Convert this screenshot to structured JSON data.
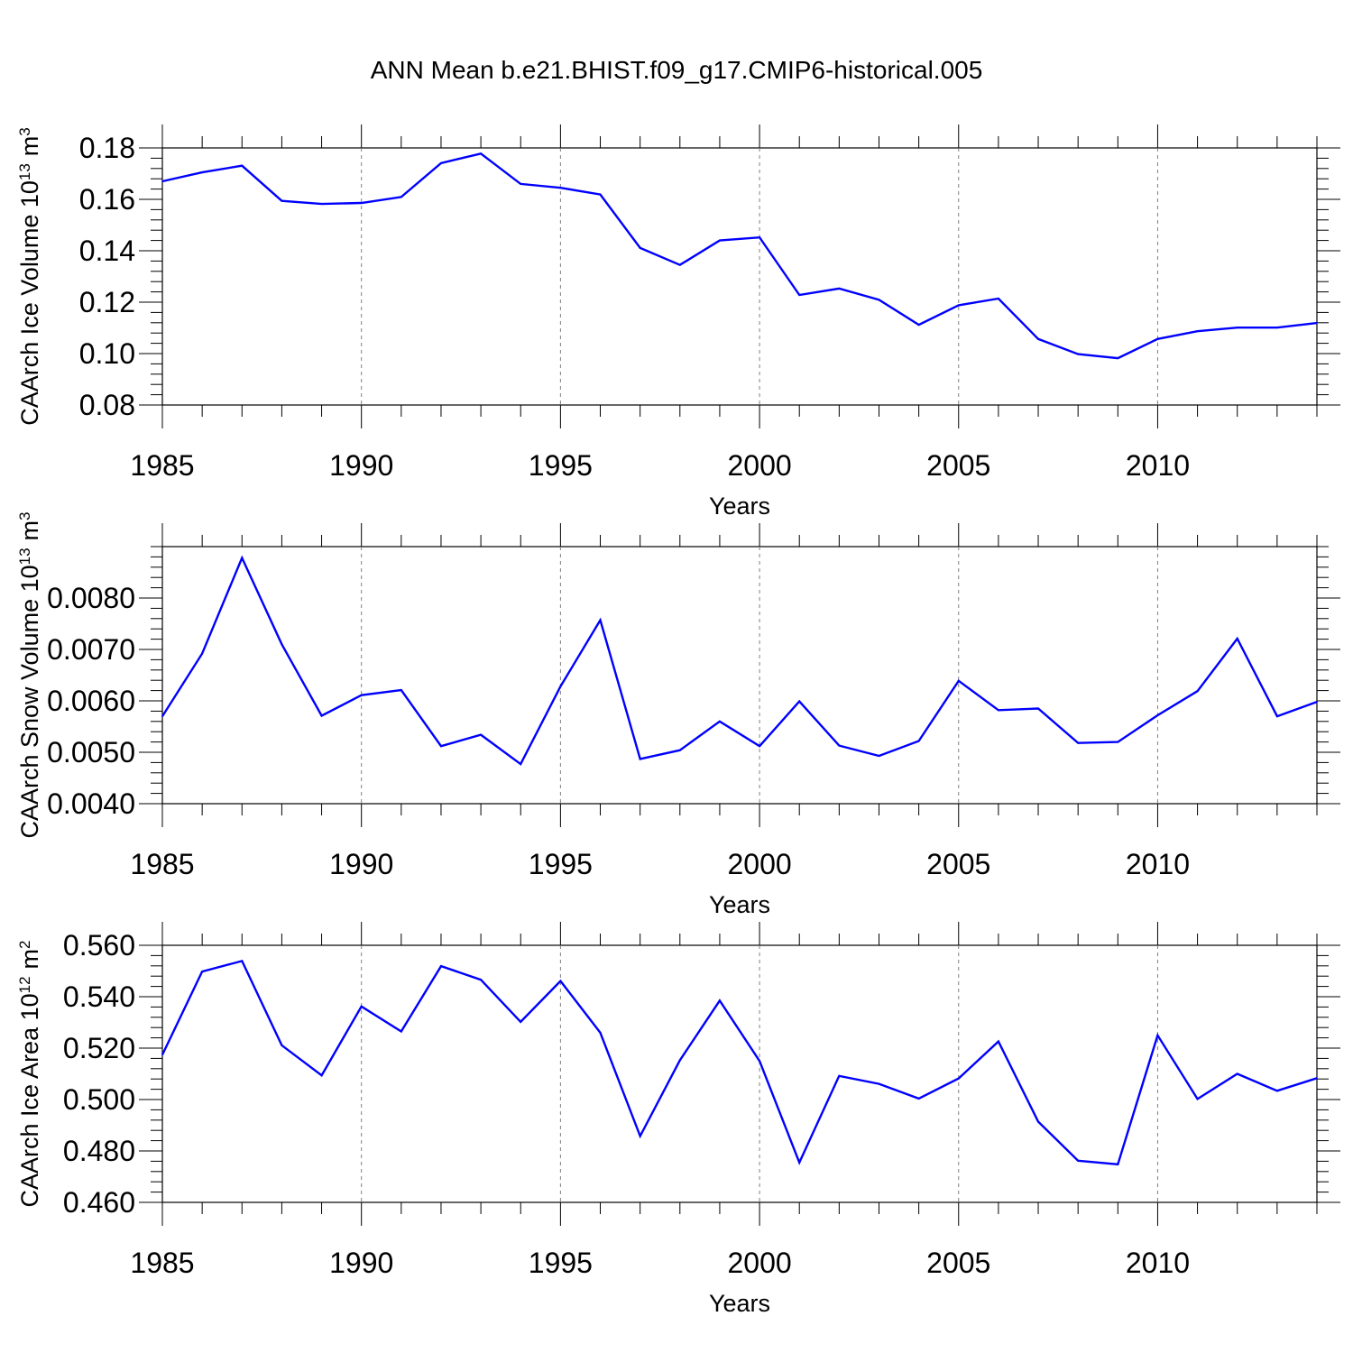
{
  "title": "ANN Mean b.e21.BHIST.f09_g17.CMIP6-historical.005",
  "colors": {
    "series": "#0000ff",
    "axes": "#000000",
    "grid": "#808080"
  },
  "chart_data": [
    {
      "type": "line",
      "title": "",
      "xlabel": "Years",
      "ylabel": "CAArch Ice Volume 10",
      "ylabel_exp": "13",
      "ylabel_unit": "m",
      "ylabel_unit_exp": "3",
      "xlim": [
        1985,
        2014
      ],
      "ylim": [
        0.08,
        0.18
      ],
      "xticks": [
        "1985",
        "1990",
        "1995",
        "2000",
        "2005",
        "2010"
      ],
      "yticks": [
        "0.08",
        "0.10",
        "0.12",
        "0.14",
        "0.16",
        "0.18"
      ],
      "grid": "x-dashed",
      "x": [
        1985,
        1986,
        1987,
        1988,
        1989,
        1990,
        1991,
        1992,
        1993,
        1994,
        1995,
        1996,
        1997,
        1998,
        1999,
        2000,
        2001,
        2002,
        2003,
        2004,
        2005,
        2006,
        2007,
        2008,
        2009,
        2010,
        2011,
        2012,
        2013,
        2014
      ],
      "series": [
        {
          "values": [
            0.167,
            0.1705,
            0.1731,
            0.1594,
            0.1582,
            0.1586,
            0.1609,
            0.1741,
            0.1778,
            0.166,
            0.1645,
            0.1619,
            0.1411,
            0.1345,
            0.144,
            0.1452,
            0.1228,
            0.1253,
            0.1209,
            0.1112,
            0.1188,
            0.1214,
            0.1057,
            0.0998,
            0.0982,
            0.1057,
            0.1087,
            0.1101,
            0.1101,
            0.1119
          ]
        }
      ]
    },
    {
      "type": "line",
      "title": "",
      "xlabel": "Years",
      "ylabel": "CAArch Snow Volume 10",
      "ylabel_exp": "13",
      "ylabel_unit": "m",
      "ylabel_unit_exp": "3",
      "xlim": [
        1985,
        2014
      ],
      "ylim": [
        0.004,
        0.009
      ],
      "xticks": [
        "1985",
        "1990",
        "1995",
        "2000",
        "2005",
        "2010"
      ],
      "yticks": [
        "0.0040",
        "0.0050",
        "0.0060",
        "0.0070",
        "0.0080"
      ],
      "grid": "x-dashed",
      "x": [
        1985,
        1986,
        1987,
        1988,
        1989,
        1990,
        1991,
        1992,
        1993,
        1994,
        1995,
        1996,
        1997,
        1998,
        1999,
        2000,
        2001,
        2002,
        2003,
        2004,
        2005,
        2006,
        2007,
        2008,
        2009,
        2010,
        2011,
        2012,
        2013,
        2014
      ],
      "series": [
        {
          "values": [
            0.0057,
            0.00692,
            0.00878,
            0.0071,
            0.00571,
            0.00611,
            0.00621,
            0.00512,
            0.00534,
            0.00477,
            0.00628,
            0.00757,
            0.00487,
            0.00504,
            0.0056,
            0.00512,
            0.00599,
            0.00513,
            0.00493,
            0.00522,
            0.00639,
            0.00582,
            0.00585,
            0.00518,
            0.0052,
            0.00572,
            0.00619,
            0.00721,
            0.0057,
            0.00598
          ]
        }
      ]
    },
    {
      "type": "line",
      "title": "",
      "xlabel": "Years",
      "ylabel": "CAArch Ice Area 10",
      "ylabel_exp": "12",
      "ylabel_unit": "m",
      "ylabel_unit_exp": "2",
      "xlim": [
        1985,
        2014
      ],
      "ylim": [
        0.46,
        0.56
      ],
      "xticks": [
        "1985",
        "1990",
        "1995",
        "2000",
        "2005",
        "2010"
      ],
      "yticks": [
        "0.460",
        "0.480",
        "0.500",
        "0.520",
        "0.540",
        "0.560"
      ],
      "grid": "x-dashed",
      "x": [
        1985,
        1986,
        1987,
        1988,
        1989,
        1990,
        1991,
        1992,
        1993,
        1994,
        1995,
        1996,
        1997,
        1998,
        1999,
        2000,
        2001,
        2002,
        2003,
        2004,
        2005,
        2006,
        2007,
        2008,
        2009,
        2010,
        2011,
        2012,
        2013,
        2014
      ],
      "series": [
        {
          "values": [
            0.5174,
            0.5498,
            0.5539,
            0.5211,
            0.5094,
            0.5362,
            0.5265,
            0.5519,
            0.5466,
            0.5302,
            0.5461,
            0.526,
            0.4858,
            0.5153,
            0.5385,
            0.515,
            0.4755,
            0.5092,
            0.5061,
            0.5004,
            0.5082,
            0.5226,
            0.4914,
            0.4762,
            0.4748,
            0.525,
            0.5002,
            0.51,
            0.5034,
            0.5083
          ]
        }
      ]
    }
  ]
}
